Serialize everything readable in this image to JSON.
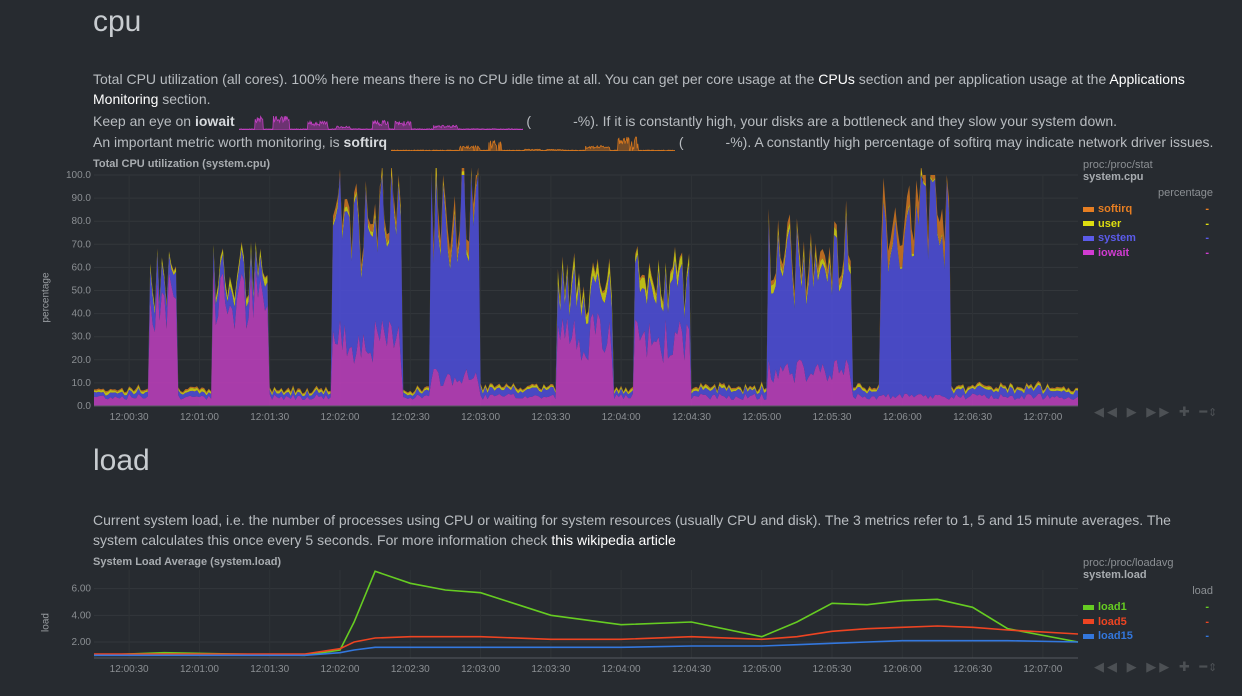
{
  "cpu": {
    "title": "cpu",
    "desc1": "Total CPU utilization (all cores). 100% here means there is no CPU idle time at all. You can get per core usage at the ",
    "link_cpus": "CPUs",
    "desc2": " section and per application usage at the ",
    "link_apps": "Applications Monitoring",
    "desc3": " section.",
    "iowait_pre": "Keep an eye on ",
    "iowait_label": "iowait",
    "iowait_open": " (",
    "iowait_post": "-%). If it is constantly high, your disks are a bottleneck and they slow your system down.",
    "softirq_pre": "An important metric worth monitoring, is ",
    "softirq_label": "softirq",
    "softirq_open": " (",
    "softirq_post": "-%). A constantly high percentage of softirq may indicate network driver issues.",
    "chart_title": "Total CPU utilization (system.cpu)",
    "ylabel": "percentage",
    "legend": {
      "context": "proc:/proc/stat",
      "id": "system.cpu",
      "units": "percentage",
      "items": [
        {
          "name": "softirq",
          "value": "-",
          "color": "#e67e22"
        },
        {
          "name": "user",
          "value": "-",
          "color": "#dede10"
        },
        {
          "name": "system",
          "value": "-",
          "color": "#5b5bea"
        },
        {
          "name": "iowait",
          "value": "-",
          "color": "#d13bd1"
        }
      ]
    }
  },
  "load": {
    "title": "load",
    "desc1": "Current system load, i.e. the number of processes using CPU or waiting for system resources (usually CPU and disk). The 3 metrics refer to 1, 5 and 15 minute averages. The system calculates this once every 5 seconds. For more information check ",
    "link": "this wikipedia article",
    "chart_title": "System Load Average (system.load)",
    "ylabel": "load",
    "legend": {
      "context": "proc:/proc/loadavg",
      "id": "system.load",
      "units": "load",
      "items": [
        {
          "name": "load1",
          "value": "-",
          "color": "#66cc22"
        },
        {
          "name": "load5",
          "value": "-",
          "color": "#ee4422"
        },
        {
          "name": "load15",
          "value": "-",
          "color": "#3377dd"
        }
      ]
    }
  },
  "toolbar": {
    "glyphs": "◀◀ ▶ ▶▶ ✚ ━",
    "resize": "⇕"
  },
  "chart_data": [
    {
      "type": "area",
      "title": "Total CPU utilization (system.cpu)",
      "ylabel": "percentage",
      "ylim": [
        0,
        100
      ],
      "y_ticks": [
        "0.0",
        "10.0",
        "20.0",
        "30.0",
        "40.0",
        "50.0",
        "60.0",
        "70.0",
        "80.0",
        "90.0",
        "100.0"
      ],
      "x_ticks": [
        "12:00:30",
        "12:01:00",
        "12:01:30",
        "12:02:00",
        "12:02:30",
        "12:03:00",
        "12:03:30",
        "12:04:00",
        "12:04:30",
        "12:05:00",
        "12:05:30",
        "12:06:00",
        "12:06:30",
        "12:07:00"
      ],
      "stacked": true,
      "x_range": [
        "12:00:15",
        "12:07:15"
      ],
      "segments": [
        {
          "from": "12:00:15",
          "to": "12:00:33",
          "iowait": 4,
          "system": 2,
          "user": 1,
          "softirq": 0.5
        },
        {
          "from": "12:00:39",
          "to": "12:00:51",
          "iowait": 48,
          "system": 10,
          "user": 2,
          "softirq": 0.5
        },
        {
          "from": "12:01:06",
          "to": "12:01:30",
          "iowait": 45,
          "system": 8,
          "user": 3,
          "softirq": 0.5
        },
        {
          "from": "12:01:30",
          "to": "12:01:57",
          "iowait": 4,
          "system": 2,
          "user": 1,
          "softirq": 0.5
        },
        {
          "from": "12:01:57",
          "to": "12:02:27",
          "iowait": 28,
          "system": 52,
          "user": 2,
          "softirq": 3
        },
        {
          "from": "12:02:27",
          "to": "12:02:39",
          "iowait": 4,
          "system": 2,
          "user": 1,
          "softirq": 0.5
        },
        {
          "from": "12:02:39",
          "to": "12:03:00",
          "iowait": 12,
          "system": 70,
          "user": 2,
          "softirq": 6
        },
        {
          "from": "12:03:00",
          "to": "12:03:33",
          "iowait": 4,
          "system": 3,
          "user": 1,
          "softirq": 0.5
        },
        {
          "from": "12:03:33",
          "to": "12:03:57",
          "iowait": 30,
          "system": 18,
          "user": 4,
          "softirq": 1
        },
        {
          "from": "12:04:06",
          "to": "12:04:30",
          "iowait": 28,
          "system": 25,
          "user": 4,
          "softirq": 1
        },
        {
          "from": "12:04:30",
          "to": "12:05:03",
          "iowait": 4,
          "system": 3,
          "user": 1,
          "softirq": 0.5
        },
        {
          "from": "12:05:03",
          "to": "12:05:39",
          "iowait": 15,
          "system": 48,
          "user": 3,
          "softirq": 3
        },
        {
          "from": "12:05:39",
          "to": "12:05:51",
          "iowait": 4,
          "system": 3,
          "user": 1,
          "softirq": 0.5
        },
        {
          "from": "12:05:51",
          "to": "12:06:21",
          "iowait": 4,
          "system": 78,
          "user": 1,
          "softirq": 8
        },
        {
          "from": "12:06:21",
          "to": "12:07:15",
          "iowait": 4,
          "system": 3,
          "user": 1,
          "softirq": 0.5
        }
      ]
    },
    {
      "type": "line",
      "title": "System Load Average (system.load)",
      "ylabel": "load",
      "ylim": [
        0.8,
        7.4
      ],
      "y_ticks": [
        "2.00",
        "4.00",
        "6.00"
      ],
      "x_ticks": [
        "12:00:30",
        "12:01:00",
        "12:01:30",
        "12:02:00",
        "12:02:30",
        "12:03:00",
        "12:03:30",
        "12:04:00",
        "12:04:30",
        "12:05:00",
        "12:05:30",
        "12:06:00",
        "12:06:30",
        "12:07:00"
      ],
      "x": [
        "12:00:15",
        "12:00:45",
        "12:01:15",
        "12:01:45",
        "12:02:00",
        "12:02:06",
        "12:02:15",
        "12:02:30",
        "12:02:45",
        "12:03:00",
        "12:03:30",
        "12:04:00",
        "12:04:30",
        "12:05:00",
        "12:05:15",
        "12:05:30",
        "12:05:45",
        "12:06:00",
        "12:06:15",
        "12:06:30",
        "12:06:45",
        "12:07:15"
      ],
      "series": [
        {
          "name": "load1",
          "values": [
            1.0,
            1.2,
            1.1,
            1.0,
            1.4,
            3.5,
            7.3,
            6.4,
            5.9,
            5.7,
            4.0,
            3.3,
            3.5,
            2.4,
            3.5,
            4.9,
            4.8,
            5.1,
            5.2,
            4.6,
            3.0,
            2.0
          ]
        },
        {
          "name": "load5",
          "values": [
            1.1,
            1.1,
            1.1,
            1.1,
            1.5,
            2.0,
            2.3,
            2.4,
            2.4,
            2.4,
            2.2,
            2.2,
            2.4,
            2.2,
            2.4,
            2.8,
            3.0,
            3.1,
            3.2,
            3.1,
            2.9,
            2.6
          ]
        },
        {
          "name": "load15",
          "values": [
            1.0,
            1.0,
            1.0,
            1.0,
            1.2,
            1.4,
            1.6,
            1.6,
            1.6,
            1.6,
            1.6,
            1.6,
            1.7,
            1.7,
            1.8,
            1.9,
            2.0,
            2.1,
            2.1,
            2.1,
            2.1,
            2.0
          ]
        }
      ]
    }
  ]
}
